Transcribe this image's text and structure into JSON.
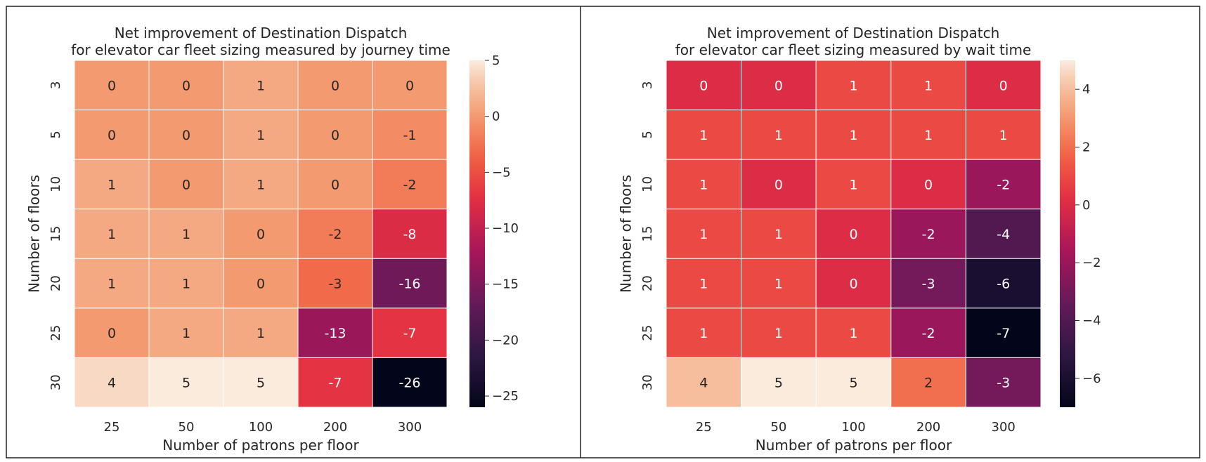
{
  "chart_data": [
    {
      "type": "heatmap",
      "title": "Net improvement of Destination Dispatch\nfor elevator car fleet sizing measured by journey time",
      "title_lines": [
        "Net improvement of Destination Dispatch",
        "for elevator car fleet sizing measured by journey time"
      ],
      "xlabel": "Number of patrons per floor",
      "ylabel": "Number of floors",
      "x_categories": [
        "25",
        "50",
        "100",
        "200",
        "300"
      ],
      "y_categories": [
        "3",
        "5",
        "10",
        "15",
        "20",
        "25",
        "30"
      ],
      "values": [
        [
          0,
          0,
          1,
          0,
          0
        ],
        [
          0,
          0,
          1,
          0,
          -1
        ],
        [
          1,
          0,
          1,
          0,
          -2
        ],
        [
          1,
          1,
          0,
          -2,
          -8
        ],
        [
          1,
          1,
          0,
          -3,
          -16
        ],
        [
          0,
          1,
          1,
          -13,
          -7
        ],
        [
          4,
          5,
          5,
          -7,
          -26
        ]
      ],
      "annotated": true,
      "colormap": "rocket",
      "colorbar": {
        "min": -26,
        "max": 5,
        "ticks": [
          5,
          0,
          -5,
          -10,
          -15,
          -20,
          -25
        ]
      },
      "grid": false
    },
    {
      "type": "heatmap",
      "title": "Net improvement of Destination Dispatch\nfor elevator car fleet sizing measured by wait time",
      "title_lines": [
        "Net improvement of Destination Dispatch",
        "for elevator car fleet sizing measured by wait time"
      ],
      "xlabel": "Number of patrons per floor",
      "ylabel": "Number of floors",
      "x_categories": [
        "25",
        "50",
        "100",
        "200",
        "300"
      ],
      "y_categories": [
        "3",
        "5",
        "10",
        "15",
        "20",
        "25",
        "30"
      ],
      "values": [
        [
          0,
          0,
          1,
          1,
          0
        ],
        [
          1,
          1,
          1,
          1,
          1
        ],
        [
          1,
          0,
          1,
          0,
          -2
        ],
        [
          1,
          1,
          0,
          -2,
          -4
        ],
        [
          1,
          1,
          0,
          -3,
          -6
        ],
        [
          1,
          1,
          1,
          -2,
          -7
        ],
        [
          4,
          5,
          5,
          2,
          -3
        ]
      ],
      "annotated": true,
      "colormap": "rocket",
      "colorbar": {
        "min": -7,
        "max": 5,
        "ticks": [
          4,
          2,
          0,
          -2,
          -4,
          -6
        ]
      },
      "grid": false
    }
  ]
}
